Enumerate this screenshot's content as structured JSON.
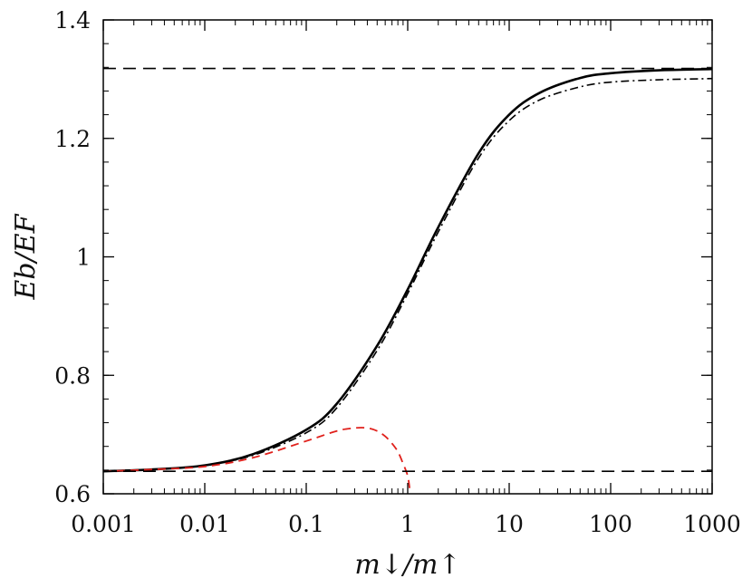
{
  "chart_data": {
    "type": "line",
    "title": "",
    "xlabel": "m↓/m↑",
    "ylabel": "Eb/EF",
    "x_scale": "log",
    "xlim": [
      0.001,
      1000
    ],
    "ylim": [
      0.6,
      1.4
    ],
    "grid": false,
    "legend": "none",
    "x_ticks": [
      0.001,
      0.01,
      0.1,
      1,
      10,
      100,
      1000
    ],
    "x_tick_labels": [
      "0.001",
      "0.01",
      "0.1",
      "1",
      "10",
      "100",
      "1000"
    ],
    "y_ticks": [
      0.6,
      0.8,
      1.0,
      1.2,
      1.4
    ],
    "y_tick_labels": [
      "0.6",
      "0.8",
      "1",
      "1.2",
      "1.4"
    ],
    "series": [
      {
        "style": "solid",
        "color": "#000000",
        "x": [
          0.001,
          0.003,
          0.01,
          0.03,
          0.1,
          0.2,
          0.5,
          1,
          2,
          5,
          10,
          20,
          50,
          100,
          300,
          1000
        ],
        "y": [
          0.638,
          0.641,
          0.648,
          0.667,
          0.708,
          0.752,
          0.85,
          0.945,
          1.05,
          1.175,
          1.24,
          1.277,
          1.302,
          1.31,
          1.315,
          1.317
        ]
      },
      {
        "style": "dash-dot",
        "color": "#000000",
        "x": [
          0.001,
          0.003,
          0.01,
          0.03,
          0.1,
          0.2,
          0.5,
          1,
          2,
          5,
          10,
          20,
          50,
          100,
          300,
          1000
        ],
        "y": [
          0.638,
          0.641,
          0.648,
          0.665,
          0.703,
          0.745,
          0.842,
          0.938,
          1.042,
          1.167,
          1.23,
          1.265,
          1.287,
          1.295,
          1.299,
          1.301
        ]
      },
      {
        "style": "dashed",
        "color": "#e0201b",
        "x": [
          0.001,
          0.003,
          0.01,
          0.03,
          0.1,
          0.2,
          0.3,
          0.4,
          0.5,
          0.6,
          0.7,
          0.8,
          0.9,
          1.0,
          1.05
        ],
        "y": [
          0.638,
          0.641,
          0.646,
          0.661,
          0.689,
          0.706,
          0.711,
          0.711,
          0.706,
          0.697,
          0.685,
          0.671,
          0.651,
          0.63,
          0.606
        ]
      },
      {
        "style": "long-dash",
        "color": "#000000",
        "x": [
          0.001,
          1000
        ],
        "y": [
          1.318,
          1.318
        ]
      },
      {
        "style": "long-dash",
        "color": "#000000",
        "x": [
          0.001,
          1000
        ],
        "y": [
          0.638,
          0.638
        ]
      }
    ]
  }
}
